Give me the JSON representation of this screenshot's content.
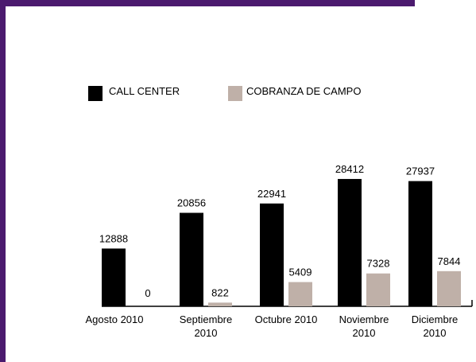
{
  "chart_data": {
    "type": "bar",
    "categories": [
      "Agosto 2010",
      "Septiembre 2010",
      "Octubre 2010",
      "Noviembre 2010",
      "Diciembre 2010"
    ],
    "series": [
      {
        "name": "CALL CENTER",
        "color": "#000000",
        "values": [
          12888,
          20856,
          22941,
          28412,
          27937
        ]
      },
      {
        "name": "COBRANZA DE CAMPO",
        "color": "#bfb0a8",
        "values": [
          0,
          822,
          5409,
          7328,
          7844
        ]
      }
    ],
    "ylim": [
      0,
      30000
    ],
    "legend": "top"
  }
}
